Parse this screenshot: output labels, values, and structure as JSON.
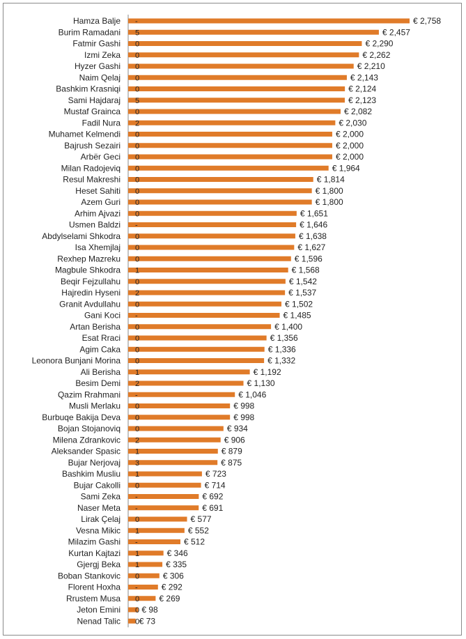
{
  "chart_data": {
    "type": "bar",
    "orientation": "horizontal",
    "grid": false,
    "legend": "none",
    "bar_color": "#E07B29",
    "axis_color": "#8a8a8a",
    "currency_prefix": "€ ",
    "categories": [
      "Hamza Balje",
      "Burim Ramadani",
      "Fatmir Gashi",
      "Izmi Zeka",
      "Hyzer Gashi",
      "Naim Qelaj",
      "Bashkim Krasniqi",
      "Sami Hajdaraj",
      "Mustaf Grainca",
      "Fadil Nura",
      "Muhamet Kelmendi",
      "Bajrush Sezairi",
      "Arbër Geci",
      "Milan Radojeviq",
      "Resul Makreshi",
      "Heset Sahiti",
      "Azem Guri",
      "Arhim Ajvazi",
      "Usmen Baldzi",
      "Abdylselami Shkodra",
      "Isa Xhemjlaj",
      "Rexhep Mazreku",
      "Magbule Shkodra",
      "Beqir Fejzullahu",
      "Hajredin Hyseni",
      "Granit Avdullahu",
      "Gani Koci",
      "Artan Berisha",
      "Esat Rraci",
      "Agim Caka",
      "Leonora Bunjani Morina",
      "Ali Berisha",
      "Besim Demi",
      "Qazim Rrahmani",
      "Musli Merlaku",
      "Burbuqe Bakija Deva",
      "Bojan Stojanoviq",
      "Milena Zdrankovic",
      "Aleksander Spasic",
      "Bujar Nerjovaj",
      "Bashkim Musliu",
      "Bujar Cakolli",
      "Sami Zeka",
      "Naser Meta",
      "Lirak Çelaj",
      "Vesna Mikic",
      "Milazim Gashi",
      "Kurtan Kajtazi",
      "Gjergj Beka",
      "Boban Stankovic",
      "Florent Hoxha",
      "Rrustem Musa",
      "Jeton Emini",
      "Nenad Talic"
    ],
    "values": [
      2758,
      2457,
      2290,
      2262,
      2210,
      2143,
      2124,
      2123,
      2082,
      2030,
      2000,
      2000,
      2000,
      1964,
      1814,
      1800,
      1800,
      1651,
      1646,
      1638,
      1627,
      1596,
      1568,
      1542,
      1537,
      1502,
      1485,
      1400,
      1356,
      1336,
      1332,
      1192,
      1130,
      1046,
      998,
      998,
      934,
      906,
      879,
      875,
      723,
      714,
      692,
      691,
      577,
      552,
      512,
      346,
      335,
      306,
      292,
      269,
      98,
      73
    ],
    "value_labels": [
      "€ 2,758",
      "€ 2,457",
      "€ 2,290",
      "€ 2,262",
      "€ 2,210",
      "€ 2,143",
      "€ 2,124",
      "€ 2,123",
      "€ 2,082",
      "€ 2,030",
      "€ 2,000",
      "€ 2,000",
      "€ 2,000",
      "€ 1,964",
      "€ 1,814",
      "€ 1,800",
      "€ 1,800",
      "€ 1,651",
      "€ 1,646",
      "€ 1,638",
      "€ 1,627",
      "€ 1,596",
      "€ 1,568",
      "€ 1,542",
      "€ 1,537",
      "€ 1,502",
      "€ 1,485",
      "€ 1,400",
      "€ 1,356",
      "€ 1,336",
      "€ 1,332",
      "€ 1,192",
      "€ 1,130",
      "€ 1,046",
      "€ 998",
      "€ 998",
      "€ 934",
      "€ 906",
      "€ 879",
      "€ 875",
      "€ 723",
      "€ 714",
      "€ 692",
      "€ 691",
      "€ 577",
      "€ 552",
      "€ 512",
      "€ 346",
      "€ 335",
      "€ 306",
      "€ 292",
      "€ 269",
      "€ 98",
      "€ 73"
    ],
    "overlay_labels": [
      "-",
      "5",
      "0",
      "0",
      "0",
      "0",
      "0",
      "5",
      "0",
      "2",
      "0",
      "0",
      "0",
      "0",
      "0",
      "0",
      "0",
      "0",
      "-",
      "0",
      "0",
      "0",
      "1",
      "0",
      "2",
      "0",
      "-",
      "0",
      "0",
      "0",
      "0",
      "1",
      "2",
      "-",
      "0",
      "0",
      "0",
      "2",
      "1",
      "3",
      "1",
      "0",
      "-",
      "-",
      "0",
      "1",
      "-",
      "1",
      "1",
      "0",
      "-",
      "0",
      "0",
      "0"
    ],
    "xlim": [
      0,
      2758
    ]
  }
}
